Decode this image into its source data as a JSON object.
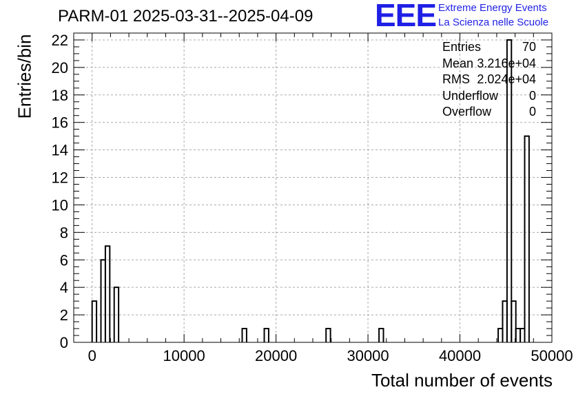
{
  "title": "PARM-01 2025-03-31--2025-04-09",
  "logo": {
    "letters": "EEE",
    "line1": "Extreme Energy Events",
    "line2": "La Scienza nelle Scuole",
    "color": "#1f1fe6"
  },
  "stats": [
    {
      "label": "Entries",
      "value": "70"
    },
    {
      "label": "Mean",
      "value": "3.216e+04"
    },
    {
      "label": "RMS",
      "value": "2.024e+04"
    },
    {
      "label": "Underflow",
      "value": "0"
    },
    {
      "label": "Overflow",
      "value": "0"
    }
  ],
  "chart_data": {
    "type": "bar",
    "subtype": "step-histogram",
    "title": "PARM-01 2025-03-31--2025-04-09",
    "xlabel": "Total number of events",
    "ylabel": "Entries/bin",
    "xlim": [
      -2000,
      50000
    ],
    "ylim": [
      0,
      22.5
    ],
    "grid": true,
    "xticks": [
      0,
      10000,
      20000,
      30000,
      40000,
      50000
    ],
    "xtick_labels": [
      "0",
      "10000",
      "20000",
      "30000",
      "40000",
      "50000"
    ],
    "yticks": [
      0,
      2,
      4,
      6,
      8,
      10,
      12,
      14,
      16,
      18,
      20,
      22
    ],
    "ytick_labels": [
      "0",
      "2",
      "4",
      "6",
      "8",
      "10",
      "12",
      "14",
      "16",
      "18",
      "20",
      "22"
    ],
    "bins": [
      {
        "x0": 0,
        "x1": 480,
        "value": 3
      },
      {
        "x0": 960,
        "x1": 1440,
        "value": 6
      },
      {
        "x0": 1440,
        "x1": 1920,
        "value": 7
      },
      {
        "x0": 2400,
        "x1": 2880,
        "value": 4
      },
      {
        "x0": 16320,
        "x1": 16800,
        "value": 1
      },
      {
        "x0": 18720,
        "x1": 19200,
        "value": 1
      },
      {
        "x0": 25440,
        "x1": 25920,
        "value": 1
      },
      {
        "x0": 31200,
        "x1": 31680,
        "value": 1
      },
      {
        "x0": 44160,
        "x1": 44640,
        "value": 1
      },
      {
        "x0": 44640,
        "x1": 45120,
        "value": 3
      },
      {
        "x0": 45120,
        "x1": 45600,
        "value": 22
      },
      {
        "x0": 45600,
        "x1": 46080,
        "value": 3
      },
      {
        "x0": 46080,
        "x1": 46560,
        "value": 1
      },
      {
        "x0": 46560,
        "x1": 47040,
        "value": 1
      },
      {
        "x0": 47040,
        "x1": 47520,
        "value": 15
      }
    ]
  }
}
